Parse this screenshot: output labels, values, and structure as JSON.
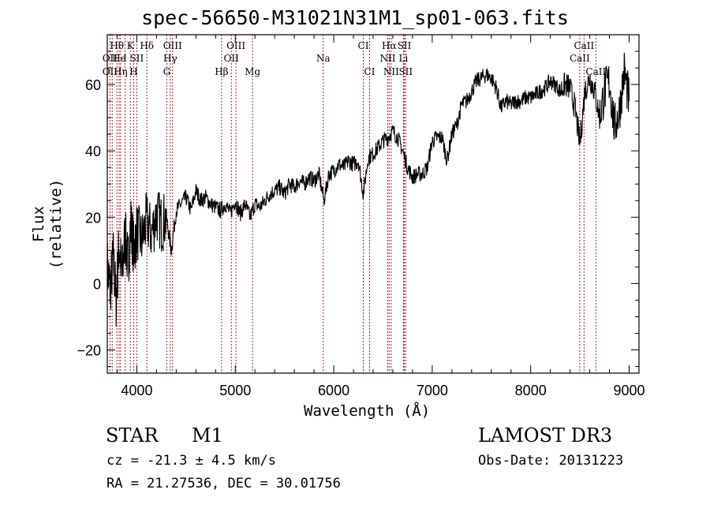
{
  "header": {
    "title": "spec-56650-M31021N31M1_sp01-063.fits"
  },
  "footer": {
    "object_class": "STAR",
    "subclass": "M1",
    "survey": "LAMOST DR3",
    "cz": "cz = -21.3 ± 4.5 km/s",
    "obs_date": "Obs-Date: 20131223",
    "radec": "RA =  21.27536, DEC =  30.01756"
  },
  "chart_data": {
    "type": "line",
    "title": "spec-56650-M31021N31M1_sp01-063.fits",
    "xlabel": "Wavelength (Å)",
    "ylabel": "Flux (relative)",
    "xlim": [
      3700,
      9100
    ],
    "ylim": [
      -27,
      75
    ],
    "x_ticks": [
      4000,
      5000,
      6000,
      7000,
      8000,
      9000
    ],
    "x_tick_labels": [
      "4000",
      "5000",
      "6000",
      "7000",
      "8000",
      "9000"
    ],
    "y_ticks": [
      -20,
      0,
      20,
      40,
      60
    ],
    "y_tick_labels": [
      "−20",
      "0",
      "20",
      "40",
      "60"
    ],
    "grid": false,
    "line_color": "#000000",
    "marker_color": "#b22222",
    "series": [
      {
        "x": [
          3700,
          3730,
          3760,
          3790,
          3820,
          3850,
          3880,
          3910,
          3940,
          3970,
          4000,
          4050,
          4100,
          4150,
          4200,
          4250,
          4300,
          4350,
          4400,
          4450,
          4500,
          4550,
          4600,
          4650,
          4700,
          4750,
          4800,
          4850,
          4900,
          4950,
          5000,
          5050,
          5100,
          5150,
          5200,
          5250,
          5300,
          5350,
          5400,
          5450,
          5500,
          5550,
          5600,
          5650,
          5700,
          5750,
          5800,
          5850,
          5900,
          5950,
          6000,
          6050,
          6100,
          6150,
          6200,
          6250,
          6300,
          6350,
          6400,
          6450,
          6500,
          6550,
          6600,
          6650,
          6700,
          6750,
          6800,
          6850,
          6900,
          6950,
          7000,
          7050,
          7100,
          7150,
          7200,
          7250,
          7300,
          7350,
          7400,
          7450,
          7500,
          7550,
          7600,
          7650,
          7700,
          7750,
          7800,
          7850,
          7900,
          7950,
          8000,
          8050,
          8100,
          8150,
          8200,
          8250,
          8300,
          8350,
          8400,
          8450,
          8500,
          8550,
          8600,
          8650,
          8700,
          8750,
          8800,
          8850,
          8900,
          8950,
          9000
        ],
        "y": [
          5,
          -2,
          8,
          -5,
          12,
          2,
          15,
          6,
          18,
          10,
          16,
          13,
          19,
          15,
          21,
          18,
          20,
          10,
          22,
          24,
          26,
          22,
          28,
          25,
          26,
          24,
          23,
          22,
          24,
          21,
          25,
          21,
          24,
          20,
          24,
          23,
          25,
          27,
          28,
          29,
          27,
          30,
          29,
          31,
          30,
          32,
          31,
          33,
          25,
          33,
          34,
          36,
          35,
          37,
          36,
          37,
          27,
          38,
          39,
          41,
          43,
          44,
          46,
          44,
          40,
          35,
          32,
          33,
          33,
          35,
          43,
          44,
          44,
          37,
          45,
          48,
          54,
          55,
          58,
          61,
          62,
          63,
          62,
          59,
          53,
          55,
          54,
          55,
          55,
          56,
          56,
          57,
          58,
          59,
          61,
          60,
          58,
          60,
          59,
          53,
          42,
          58,
          62,
          58,
          50,
          58,
          61,
          47,
          52,
          64,
          55
        ]
      }
    ],
    "emission_lines": [
      {
        "label": "Hθ",
        "x": 3798,
        "row": 1
      },
      {
        "label": "K",
        "x": 3934,
        "row": 1
      },
      {
        "label": "Hδ",
        "x": 4102,
        "row": 1
      },
      {
        "label": "OIII",
        "x": 4363,
        "row": 1
      },
      {
        "label": "OIII",
        "x": 5007,
        "row": 1
      },
      {
        "label": "CI",
        "x": 6300,
        "row": 1
      },
      {
        "label": "Hα",
        "x": 6563,
        "row": 1
      },
      {
        "label": "SII",
        "x": 6717,
        "row": 1
      },
      {
        "label": "CaII",
        "x": 8542,
        "row": 1
      },
      {
        "label": "OII",
        "x": 3727,
        "row": 2
      },
      {
        "label": "He",
        "x": 3820,
        "row": 2
      },
      {
        "label": "I",
        "x": 3880,
        "row": 2
      },
      {
        "label": "SII",
        "x": 4000,
        "row": 2
      },
      {
        "label": "Hγ",
        "x": 4340,
        "row": 2
      },
      {
        "label": "OII",
        "x": 4960,
        "row": 2
      },
      {
        "label": "Na",
        "x": 5893,
        "row": 2
      },
      {
        "label": "NII",
        "x": 6548,
        "row": 2
      },
      {
        "label": "Li",
        "x": 6708,
        "row": 2
      },
      {
        "label": "CaII",
        "x": 8498,
        "row": 2
      },
      {
        "label": "OII",
        "x": 3727,
        "row": 3
      },
      {
        "label": "Hη",
        "x": 3835,
        "row": 3
      },
      {
        "label": "H",
        "x": 3968,
        "row": 3
      },
      {
        "label": "G",
        "x": 4304,
        "row": 3
      },
      {
        "label": "Hβ",
        "x": 4861,
        "row": 3
      },
      {
        "label": "Mg",
        "x": 5175,
        "row": 3
      },
      {
        "label": "CI",
        "x": 6364,
        "row": 3
      },
      {
        "label": "NII",
        "x": 6583,
        "row": 3
      },
      {
        "label": "SII",
        "x": 6731,
        "row": 3
      },
      {
        "label": "CaII",
        "x": 8662,
        "row": 3
      }
    ],
    "marker_x": [
      3727,
      3750,
      3798,
      3820,
      3835,
      3880,
      3934,
      3968,
      4000,
      4102,
      4304,
      4340,
      4363,
      4861,
      4960,
      5007,
      5175,
      5893,
      6300,
      6364,
      6548,
      6563,
      6583,
      6708,
      6717,
      6731,
      8498,
      8542,
      8662
    ]
  }
}
